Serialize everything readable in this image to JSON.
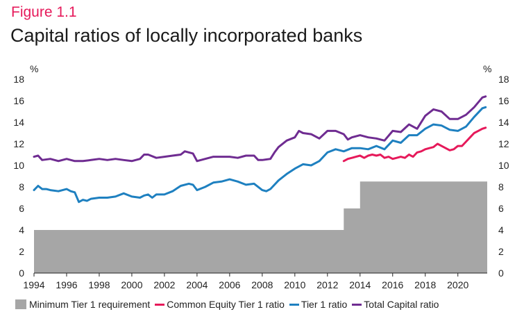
{
  "figure_label": "Figure 1.1",
  "title": "Capital ratios of locally incorporated banks",
  "chart_data": {
    "type": "line",
    "y_unit_left": "%",
    "y_unit_right": "%",
    "ylim": [
      0,
      18
    ],
    "yticks": [
      0,
      2,
      4,
      6,
      8,
      10,
      12,
      14,
      16,
      18
    ],
    "xlim": [
      1994,
      2021.8
    ],
    "xticks": [
      1994,
      1996,
      1998,
      2000,
      2002,
      2004,
      2006,
      2008,
      2010,
      2012,
      2014,
      2016,
      2018,
      2020
    ],
    "xtick_labels": [
      "1994",
      "1996",
      "1998",
      "2000",
      "2002",
      "2004",
      "2006",
      "2008",
      "2010",
      "2012",
      "2014",
      "2016",
      "2018",
      "2020"
    ],
    "grid": false,
    "legend_position": "bottom",
    "colors": {
      "minimum": "#a6a6a6",
      "cet1": "#e6195a",
      "tier1": "#1e80c0",
      "total": "#6f2c91"
    },
    "series": [
      {
        "name": "Minimum Tier 1 requirement",
        "key": "minimum",
        "kind": "step-area",
        "steps": [
          {
            "x": 1994,
            "y": 4
          },
          {
            "x": 2013,
            "y": 6
          },
          {
            "x": 2014,
            "y": 8.5
          }
        ]
      },
      {
        "name": "Common Equity Tier 1 ratio",
        "key": "cet1",
        "kind": "line",
        "points": [
          [
            2013.0,
            10.4
          ],
          [
            2013.25,
            10.6
          ],
          [
            2013.5,
            10.7
          ],
          [
            2013.75,
            10.8
          ],
          [
            2014.0,
            10.9
          ],
          [
            2014.25,
            10.7
          ],
          [
            2014.5,
            10.9
          ],
          [
            2014.75,
            11.0
          ],
          [
            2015.0,
            10.9
          ],
          [
            2015.25,
            11.0
          ],
          [
            2015.5,
            10.7
          ],
          [
            2015.75,
            10.8
          ],
          [
            2016.0,
            10.6
          ],
          [
            2016.25,
            10.7
          ],
          [
            2016.5,
            10.8
          ],
          [
            2016.75,
            10.7
          ],
          [
            2017.0,
            11.0
          ],
          [
            2017.25,
            10.8
          ],
          [
            2017.5,
            11.2
          ],
          [
            2017.75,
            11.3
          ],
          [
            2018.0,
            11.5
          ],
          [
            2018.25,
            11.6
          ],
          [
            2018.5,
            11.7
          ],
          [
            2018.75,
            12.0
          ],
          [
            2019.0,
            11.8
          ],
          [
            2019.25,
            11.6
          ],
          [
            2019.5,
            11.4
          ],
          [
            2019.75,
            11.5
          ],
          [
            2020.0,
            11.8
          ],
          [
            2020.25,
            11.8
          ],
          [
            2020.5,
            12.2
          ],
          [
            2020.75,
            12.6
          ],
          [
            2021.0,
            13.0
          ],
          [
            2021.25,
            13.2
          ],
          [
            2021.5,
            13.4
          ],
          [
            2021.7,
            13.5
          ]
        ]
      },
      {
        "name": "Tier 1 ratio",
        "key": "tier1",
        "kind": "line",
        "points": [
          [
            1994.0,
            7.7
          ],
          [
            1994.25,
            8.1
          ],
          [
            1994.5,
            7.8
          ],
          [
            1994.75,
            7.8
          ],
          [
            1995.0,
            7.7
          ],
          [
            1995.5,
            7.6
          ],
          [
            1996.0,
            7.8
          ],
          [
            1996.25,
            7.6
          ],
          [
            1996.5,
            7.5
          ],
          [
            1996.75,
            6.6
          ],
          [
            1997.0,
            6.8
          ],
          [
            1997.25,
            6.7
          ],
          [
            1997.5,
            6.9
          ],
          [
            1998.0,
            7.0
          ],
          [
            1998.5,
            7.0
          ],
          [
            1999.0,
            7.1
          ],
          [
            1999.5,
            7.4
          ],
          [
            2000.0,
            7.1
          ],
          [
            2000.5,
            7.0
          ],
          [
            2000.75,
            7.2
          ],
          [
            2001.0,
            7.3
          ],
          [
            2001.25,
            7.0
          ],
          [
            2001.5,
            7.3
          ],
          [
            2002.0,
            7.3
          ],
          [
            2002.5,
            7.6
          ],
          [
            2003.0,
            8.1
          ],
          [
            2003.5,
            8.3
          ],
          [
            2003.75,
            8.2
          ],
          [
            2004.0,
            7.7
          ],
          [
            2004.5,
            8.0
          ],
          [
            2005.0,
            8.4
          ],
          [
            2005.5,
            8.5
          ],
          [
            2006.0,
            8.7
          ],
          [
            2006.5,
            8.5
          ],
          [
            2007.0,
            8.2
          ],
          [
            2007.5,
            8.3
          ],
          [
            2008.0,
            7.7
          ],
          [
            2008.25,
            7.6
          ],
          [
            2008.5,
            7.8
          ],
          [
            2009.0,
            8.6
          ],
          [
            2009.5,
            9.2
          ],
          [
            2010.0,
            9.7
          ],
          [
            2010.5,
            10.1
          ],
          [
            2011.0,
            10.0
          ],
          [
            2011.5,
            10.4
          ],
          [
            2012.0,
            11.2
          ],
          [
            2012.5,
            11.5
          ],
          [
            2013.0,
            11.3
          ],
          [
            2013.5,
            11.6
          ],
          [
            2014.0,
            11.6
          ],
          [
            2014.5,
            11.5
          ],
          [
            2015.0,
            11.8
          ],
          [
            2015.5,
            11.5
          ],
          [
            2016.0,
            12.3
          ],
          [
            2016.5,
            12.1
          ],
          [
            2017.0,
            12.8
          ],
          [
            2017.5,
            12.8
          ],
          [
            2018.0,
            13.4
          ],
          [
            2018.5,
            13.8
          ],
          [
            2019.0,
            13.7
          ],
          [
            2019.5,
            13.3
          ],
          [
            2020.0,
            13.2
          ],
          [
            2020.5,
            13.6
          ],
          [
            2021.0,
            14.5
          ],
          [
            2021.5,
            15.3
          ],
          [
            2021.7,
            15.4
          ]
        ]
      },
      {
        "name": "Total Capital ratio",
        "key": "total",
        "kind": "line",
        "points": [
          [
            1994.0,
            10.8
          ],
          [
            1994.25,
            10.9
          ],
          [
            1994.5,
            10.5
          ],
          [
            1995.0,
            10.6
          ],
          [
            1995.5,
            10.4
          ],
          [
            1996.0,
            10.6
          ],
          [
            1996.5,
            10.4
          ],
          [
            1997.0,
            10.4
          ],
          [
            1997.5,
            10.5
          ],
          [
            1998.0,
            10.6
          ],
          [
            1998.5,
            10.5
          ],
          [
            1999.0,
            10.6
          ],
          [
            1999.5,
            10.5
          ],
          [
            2000.0,
            10.4
          ],
          [
            2000.5,
            10.6
          ],
          [
            2000.75,
            11.0
          ],
          [
            2001.0,
            11.0
          ],
          [
            2001.5,
            10.7
          ],
          [
            2002.0,
            10.8
          ],
          [
            2002.5,
            10.9
          ],
          [
            2003.0,
            11.0
          ],
          [
            2003.25,
            11.3
          ],
          [
            2003.75,
            11.1
          ],
          [
            2004.0,
            10.4
          ],
          [
            2004.5,
            10.6
          ],
          [
            2005.0,
            10.8
          ],
          [
            2005.5,
            10.8
          ],
          [
            2006.0,
            10.8
          ],
          [
            2006.5,
            10.7
          ],
          [
            2007.0,
            10.9
          ],
          [
            2007.5,
            10.9
          ],
          [
            2007.75,
            10.5
          ],
          [
            2008.0,
            10.5
          ],
          [
            2008.5,
            10.6
          ],
          [
            2008.75,
            11.2
          ],
          [
            2009.0,
            11.7
          ],
          [
            2009.5,
            12.3
          ],
          [
            2010.0,
            12.6
          ],
          [
            2010.25,
            13.2
          ],
          [
            2010.5,
            13.0
          ],
          [
            2011.0,
            12.9
          ],
          [
            2011.5,
            12.5
          ],
          [
            2012.0,
            13.2
          ],
          [
            2012.5,
            13.2
          ],
          [
            2013.0,
            12.9
          ],
          [
            2013.25,
            12.4
          ],
          [
            2013.5,
            12.6
          ],
          [
            2014.0,
            12.8
          ],
          [
            2014.5,
            12.6
          ],
          [
            2015.0,
            12.5
          ],
          [
            2015.5,
            12.3
          ],
          [
            2016.0,
            13.2
          ],
          [
            2016.5,
            13.1
          ],
          [
            2017.0,
            13.8
          ],
          [
            2017.5,
            13.4
          ],
          [
            2018.0,
            14.6
          ],
          [
            2018.5,
            15.2
          ],
          [
            2019.0,
            15.0
          ],
          [
            2019.5,
            14.3
          ],
          [
            2020.0,
            14.3
          ],
          [
            2020.5,
            14.7
          ],
          [
            2021.0,
            15.4
          ],
          [
            2021.5,
            16.3
          ],
          [
            2021.7,
            16.4
          ]
        ]
      }
    ]
  }
}
